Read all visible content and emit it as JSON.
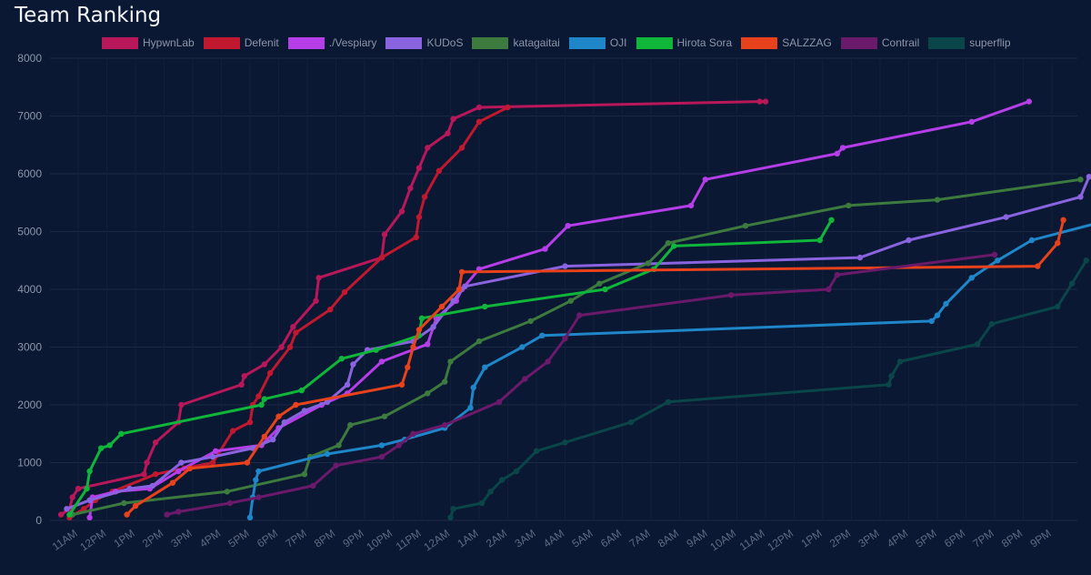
{
  "page": {
    "title": "Team Ranking"
  },
  "chart_data": {
    "type": "line",
    "title": "Team Ranking",
    "xlabel": "",
    "ylabel": "",
    "ylim": [
      0,
      8000
    ],
    "yticks": [
      0,
      1000,
      2000,
      3000,
      4000,
      5000,
      6000,
      7000,
      8000
    ],
    "x_unit": "hours from 11AM (day 1)",
    "xlim": [
      -0.8,
      34.5
    ],
    "xticks": [
      {
        "t": 0,
        "label": "11AM"
      },
      {
        "t": 1,
        "label": "12PM"
      },
      {
        "t": 2,
        "label": "1PM"
      },
      {
        "t": 3,
        "label": "2PM"
      },
      {
        "t": 4,
        "label": "3PM"
      },
      {
        "t": 5,
        "label": "4PM"
      },
      {
        "t": 6,
        "label": "5PM"
      },
      {
        "t": 7,
        "label": "6PM"
      },
      {
        "t": 8,
        "label": "7PM"
      },
      {
        "t": 9,
        "label": "8PM"
      },
      {
        "t": 10,
        "label": "9PM"
      },
      {
        "t": 11,
        "label": "10PM"
      },
      {
        "t": 12,
        "label": "11PM"
      },
      {
        "t": 13,
        "label": "12AM"
      },
      {
        "t": 14,
        "label": "1AM"
      },
      {
        "t": 15,
        "label": "2AM"
      },
      {
        "t": 16,
        "label": "3AM"
      },
      {
        "t": 17,
        "label": "4AM"
      },
      {
        "t": 18,
        "label": "5AM"
      },
      {
        "t": 19,
        "label": "6AM"
      },
      {
        "t": 20,
        "label": "7AM"
      },
      {
        "t": 21,
        "label": "8AM"
      },
      {
        "t": 22,
        "label": "9AM"
      },
      {
        "t": 23,
        "label": "10AM"
      },
      {
        "t": 24,
        "label": "11AM"
      },
      {
        "t": 25,
        "label": "12PM"
      },
      {
        "t": 26,
        "label": "1PM"
      },
      {
        "t": 27,
        "label": "2PM"
      },
      {
        "t": 28,
        "label": "3PM"
      },
      {
        "t": 29,
        "label": "4PM"
      },
      {
        "t": 30,
        "label": "5PM"
      },
      {
        "t": 31,
        "label": "6PM"
      },
      {
        "t": 32,
        "label": "7PM"
      },
      {
        "t": 33,
        "label": "8PM"
      },
      {
        "t": 34,
        "label": "9PM"
      }
    ],
    "grid": true,
    "legend_position": "top",
    "series": [
      {
        "name": "HypwnLab",
        "color": "#b8185a",
        "points": [
          [
            -0.6,
            100
          ],
          [
            -0.3,
            200
          ],
          [
            -0.2,
            400
          ],
          [
            0,
            550
          ],
          [
            2.3,
            800
          ],
          [
            2.4,
            1000
          ],
          [
            2.7,
            1350
          ],
          [
            3.5,
            1700
          ],
          [
            3.6,
            2000
          ],
          [
            5.7,
            2350
          ],
          [
            5.8,
            2500
          ],
          [
            6.5,
            2700
          ],
          [
            7.1,
            3000
          ],
          [
            7.5,
            3350
          ],
          [
            8.3,
            3800
          ],
          [
            8.4,
            4200
          ],
          [
            10.6,
            4550
          ],
          [
            10.7,
            4950
          ],
          [
            11.3,
            5350
          ],
          [
            11.6,
            5750
          ],
          [
            11.9,
            6100
          ],
          [
            12.2,
            6450
          ],
          [
            12.9,
            6700
          ],
          [
            13.1,
            6950
          ],
          [
            14,
            7150
          ],
          [
            23.8,
            7250
          ],
          [
            24,
            7250
          ]
        ]
      },
      {
        "name": "Defenit",
        "color": "#c0182f",
        "points": [
          [
            -0.3,
            50
          ],
          [
            0.2,
            200
          ],
          [
            0.6,
            350
          ],
          [
            1.2,
            500
          ],
          [
            2.7,
            800
          ],
          [
            3.7,
            900
          ],
          [
            4.7,
            1000
          ],
          [
            5.4,
            1550
          ],
          [
            6,
            1700
          ],
          [
            6.1,
            2000
          ],
          [
            6.3,
            2150
          ],
          [
            6.7,
            2550
          ],
          [
            7.4,
            3000
          ],
          [
            7.6,
            3250
          ],
          [
            8.8,
            3650
          ],
          [
            9.3,
            3950
          ],
          [
            10.6,
            4550
          ],
          [
            11.8,
            4900
          ],
          [
            11.9,
            5250
          ],
          [
            12.1,
            5600
          ],
          [
            12.6,
            6050
          ],
          [
            13.4,
            6450
          ],
          [
            14,
            6900
          ],
          [
            15,
            7150
          ]
        ]
      },
      {
        "name": "./Vespiary",
        "color": "#b63ee8",
        "points": [
          [
            0.4,
            50
          ],
          [
            0.5,
            400
          ],
          [
            1.3,
            500
          ],
          [
            2.5,
            550
          ],
          [
            3.5,
            850
          ],
          [
            4.8,
            1200
          ],
          [
            6.4,
            1300
          ],
          [
            7,
            1600
          ],
          [
            8.5,
            2000
          ],
          [
            9.4,
            2200
          ],
          [
            10.6,
            2750
          ],
          [
            12.2,
            3050
          ],
          [
            12.5,
            3500
          ],
          [
            13.2,
            3800
          ],
          [
            13.4,
            4000
          ],
          [
            14,
            4350
          ],
          [
            16.3,
            4700
          ],
          [
            17.1,
            5100
          ],
          [
            21.4,
            5450
          ],
          [
            21.9,
            5900
          ],
          [
            26.5,
            6350
          ],
          [
            26.7,
            6450
          ],
          [
            31.2,
            6900
          ],
          [
            33.2,
            7250
          ]
        ]
      },
      {
        "name": "KUDoS",
        "color": "#8a64e0",
        "points": [
          [
            -0.4,
            200
          ],
          [
            0.4,
            350
          ],
          [
            1.8,
            550
          ],
          [
            2.6,
            600
          ],
          [
            3.6,
            1000
          ],
          [
            4.7,
            1100
          ],
          [
            6.1,
            1250
          ],
          [
            6.8,
            1400
          ],
          [
            7.2,
            1700
          ],
          [
            7.9,
            1900
          ],
          [
            8.7,
            2050
          ],
          [
            9.4,
            2350
          ],
          [
            9.6,
            2700
          ],
          [
            10.1,
            2950
          ],
          [
            11.7,
            3100
          ],
          [
            12.4,
            3350
          ],
          [
            13.1,
            3800
          ],
          [
            13.5,
            4050
          ],
          [
            17,
            4400
          ],
          [
            27.3,
            4550
          ],
          [
            29,
            4850
          ],
          [
            32.4,
            5250
          ],
          [
            35,
            5600
          ],
          [
            35.3,
            5950
          ]
        ]
      },
      {
        "name": "katagaitai",
        "color": "#3c7a3e",
        "points": [
          [
            -0.2,
            100
          ],
          [
            1.6,
            300
          ],
          [
            5.2,
            500
          ],
          [
            7.9,
            800
          ],
          [
            8.1,
            1100
          ],
          [
            9.1,
            1300
          ],
          [
            9.5,
            1650
          ],
          [
            10.7,
            1800
          ],
          [
            12.2,
            2200
          ],
          [
            12.8,
            2400
          ],
          [
            13,
            2750
          ],
          [
            14,
            3100
          ],
          [
            15.8,
            3450
          ],
          [
            17.2,
            3800
          ],
          [
            18.2,
            4100
          ],
          [
            19.9,
            4450
          ],
          [
            20.6,
            4800
          ],
          [
            23.3,
            5100
          ],
          [
            26.9,
            5450
          ],
          [
            30,
            5550
          ],
          [
            35,
            5900
          ]
        ]
      },
      {
        "name": "OJI",
        "color": "#1f86c9",
        "points": [
          [
            6,
            50
          ],
          [
            6.1,
            400
          ],
          [
            6.2,
            700
          ],
          [
            6.3,
            850
          ],
          [
            8.7,
            1150
          ],
          [
            10.6,
            1300
          ],
          [
            11.4,
            1400
          ],
          [
            12.8,
            1600
          ],
          [
            13.7,
            1950
          ],
          [
            13.8,
            2300
          ],
          [
            14.2,
            2650
          ],
          [
            15.5,
            3000
          ],
          [
            16.2,
            3200
          ],
          [
            29.8,
            3450
          ],
          [
            30,
            3550
          ],
          [
            30.3,
            3750
          ],
          [
            31.2,
            4200
          ],
          [
            32.1,
            4500
          ],
          [
            33.3,
            4850
          ],
          [
            36,
            5200
          ]
        ]
      },
      {
        "name": "Hirota Sora",
        "color": "#0fb63a",
        "points": [
          [
            -0.3,
            100
          ],
          [
            0.3,
            550
          ],
          [
            0.4,
            850
          ],
          [
            0.8,
            1250
          ],
          [
            1.1,
            1300
          ],
          [
            1.5,
            1500
          ],
          [
            6.4,
            2000
          ],
          [
            6.5,
            2100
          ],
          [
            7.8,
            2250
          ],
          [
            9.2,
            2800
          ],
          [
            10.4,
            2950
          ],
          [
            11.9,
            3200
          ],
          [
            12,
            3500
          ],
          [
            14.2,
            3700
          ],
          [
            18.4,
            4000
          ],
          [
            20.1,
            4350
          ],
          [
            20.8,
            4750
          ],
          [
            25.9,
            4850
          ],
          [
            26.3,
            5200
          ]
        ]
      },
      {
        "name": "SALZZAG",
        "color": "#e8421c",
        "points": [
          [
            1.7,
            100
          ],
          [
            2,
            250
          ],
          [
            3.3,
            650
          ],
          [
            3.9,
            900
          ],
          [
            5.9,
            1000
          ],
          [
            6.5,
            1450
          ],
          [
            7,
            1800
          ],
          [
            7.6,
            2000
          ],
          [
            11.3,
            2350
          ],
          [
            11.5,
            2650
          ],
          [
            11.7,
            3000
          ],
          [
            11.9,
            3300
          ],
          [
            12.7,
            3700
          ],
          [
            13.3,
            4000
          ],
          [
            13.4,
            4300
          ],
          [
            33.5,
            4400
          ],
          [
            34.2,
            4800
          ],
          [
            34.4,
            5200
          ]
        ]
      },
      {
        "name": "Contrail",
        "color": "#6b1a6b",
        "points": [
          [
            3.1,
            100
          ],
          [
            3.5,
            150
          ],
          [
            5.3,
            300
          ],
          [
            6.3,
            400
          ],
          [
            8.2,
            600
          ],
          [
            9,
            950
          ],
          [
            10.6,
            1100
          ],
          [
            11.2,
            1300
          ],
          [
            11.7,
            1500
          ],
          [
            12.8,
            1650
          ],
          [
            14.7,
            2050
          ],
          [
            15.6,
            2450
          ],
          [
            16.4,
            2750
          ],
          [
            17,
            3150
          ],
          [
            17.5,
            3550
          ],
          [
            22.8,
            3900
          ],
          [
            26.2,
            4000
          ],
          [
            26.5,
            4250
          ],
          [
            32,
            4600
          ]
        ]
      },
      {
        "name": "superflip",
        "color": "#0a4549",
        "points": [
          [
            13,
            50
          ],
          [
            13.1,
            200
          ],
          [
            14.1,
            300
          ],
          [
            14.4,
            500
          ],
          [
            14.8,
            700
          ],
          [
            15.3,
            850
          ],
          [
            16,
            1200
          ],
          [
            17,
            1350
          ],
          [
            19.3,
            1700
          ],
          [
            20.6,
            2050
          ],
          [
            28.3,
            2350
          ],
          [
            28.4,
            2500
          ],
          [
            28.7,
            2750
          ],
          [
            31.4,
            3050
          ],
          [
            31.9,
            3400
          ],
          [
            34.2,
            3700
          ],
          [
            34.7,
            4100
          ],
          [
            35.2,
            4500
          ]
        ]
      }
    ]
  }
}
